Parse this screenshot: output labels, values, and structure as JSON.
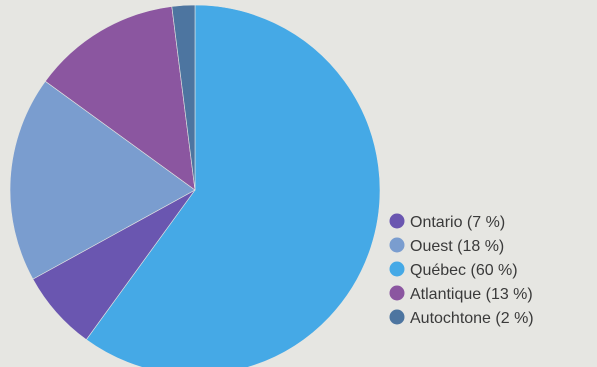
{
  "chart_data": {
    "type": "pie",
    "title": "",
    "start_angle_deg": 0,
    "direction": "clockwise",
    "slices": [
      {
        "label": "Québec (60 %)",
        "category": "Québec",
        "value": 60,
        "color": "#45a9e6"
      },
      {
        "label": "Ontario (7 %)",
        "category": "Ontario",
        "value": 7,
        "color": "#6a56b0"
      },
      {
        "label": "Ouest (18 %)",
        "category": "Ouest",
        "value": 18,
        "color": "#7a9dcf"
      },
      {
        "label": "Atlantique (13 %)",
        "category": "Atlantique",
        "value": 13,
        "color": "#8b56a0"
      },
      {
        "label": "Autochtone (2 %)",
        "category": "Autochtone",
        "value": 2,
        "color": "#4d75a0"
      }
    ],
    "legend_order": [
      "Ontario",
      "Ouest",
      "Québec",
      "Atlantique",
      "Autochtone"
    ],
    "legend_position": "bottom-right"
  }
}
